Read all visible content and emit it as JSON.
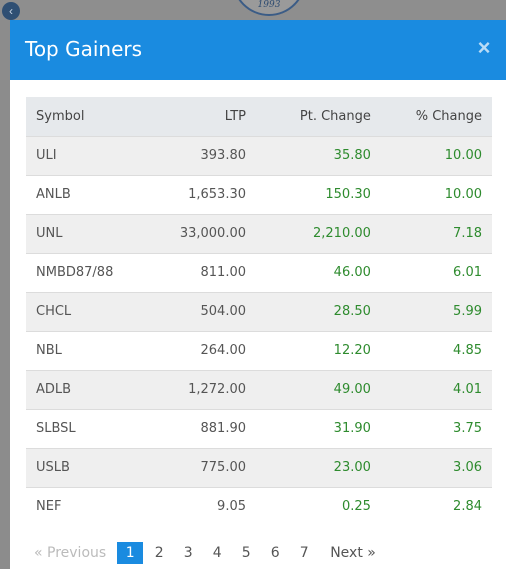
{
  "background": {
    "logo_year": "1993"
  },
  "modal": {
    "title": "Top Gainers",
    "close_symbol": "×"
  },
  "table": {
    "headers": [
      "Symbol",
      "LTP",
      "Pt. Change",
      "% Change"
    ],
    "rows": [
      [
        "ULI",
        "393.80",
        "35.80",
        "10.00"
      ],
      [
        "ANLB",
        "1,653.30",
        "150.30",
        "10.00"
      ],
      [
        "UNL",
        "33,000.00",
        "2,210.00",
        "7.18"
      ],
      [
        "NMBD87/88",
        "811.00",
        "46.00",
        "6.01"
      ],
      [
        "CHCL",
        "504.00",
        "28.50",
        "5.99"
      ],
      [
        "NBL",
        "264.00",
        "12.20",
        "4.85"
      ],
      [
        "ADLB",
        "1,272.00",
        "49.00",
        "4.01"
      ],
      [
        "SLBSL",
        "881.90",
        "31.90",
        "3.75"
      ],
      [
        "USLB",
        "775.00",
        "23.00",
        "3.06"
      ],
      [
        "NEF",
        "9.05",
        "0.25",
        "2.84"
      ]
    ]
  },
  "pagination": {
    "previous_label": "« Previous",
    "next_label": "Next »",
    "pages": [
      "1",
      "2",
      "3",
      "4",
      "5",
      "6",
      "7"
    ],
    "current_page": "1"
  },
  "colors": {
    "header_blue": "#1a8be0",
    "positive_green": "#2e8b2e"
  },
  "icons": {
    "back": "chevron-left-icon",
    "close": "close-icon"
  }
}
